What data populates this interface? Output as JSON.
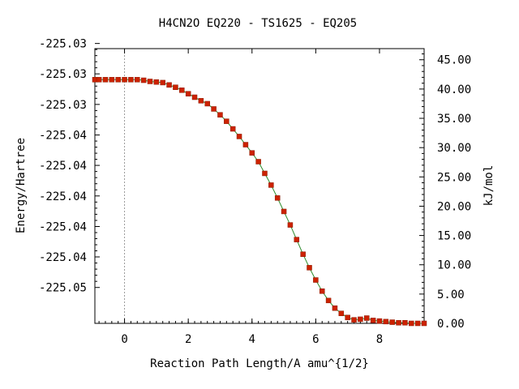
{
  "chart_data": {
    "type": "line",
    "title": "H4CN2O   EQ220 - TS1625 - EQ205",
    "xlabel": "Reaction Path Length/A amu^{1/2}",
    "ylabel": "Energy/Hartree",
    "y2label": "kJ/mol",
    "xlim": [
      -0.93,
      9.4
    ],
    "ylim": [
      -225.0475,
      -225.0315
    ],
    "y2lim": [
      0.0,
      46.9
    ],
    "x_ticks": [
      0,
      2,
      4,
      6,
      8
    ],
    "x_tick_labels": [
      "0",
      "2",
      "4",
      "6",
      "8"
    ],
    "y_ticks": [
      -225.0312,
      -225.03297,
      -225.03475,
      -225.03653,
      -225.0383,
      -225.04008,
      -225.04186,
      -225.04363,
      -225.04541
    ],
    "y_tick_labels": [
      "-225.03",
      "-225.03",
      "-225.03",
      "-225.04",
      "-225.04",
      "-225.04",
      "-225.04",
      "-225.04",
      "-225.05"
    ],
    "y2_ticks": [
      0,
      5,
      10,
      15,
      20,
      25,
      30,
      35,
      40,
      45
    ],
    "y2_tick_labels": [
      "0.00",
      "5.00",
      "10.00",
      "15.00",
      "20.00",
      "25.00",
      "30.00",
      "35.00",
      "40.00",
      "45.00"
    ],
    "ts_marker_x": 0.0,
    "grid": false,
    "series": [
      {
        "color": "#cc2200",
        "line_color": "#2a8a2a",
        "points": [
          [
            -0.93,
            41.6
          ],
          [
            -0.8,
            41.6
          ],
          [
            -0.6,
            41.6
          ],
          [
            -0.4,
            41.6
          ],
          [
            -0.2,
            41.6
          ],
          [
            0.0,
            41.6
          ],
          [
            0.2,
            41.6
          ],
          [
            0.4,
            41.6
          ],
          [
            0.6,
            41.5
          ],
          [
            0.8,
            41.3
          ],
          [
            1.0,
            41.2
          ],
          [
            1.2,
            41.1
          ],
          [
            1.4,
            40.7
          ],
          [
            1.6,
            40.3
          ],
          [
            1.8,
            39.8
          ],
          [
            2.0,
            39.2
          ],
          [
            2.2,
            38.6
          ],
          [
            2.4,
            38.0
          ],
          [
            2.6,
            37.5
          ],
          [
            2.8,
            36.6
          ],
          [
            3.0,
            35.6
          ],
          [
            3.2,
            34.5
          ],
          [
            3.4,
            33.2
          ],
          [
            3.6,
            31.9
          ],
          [
            3.8,
            30.5
          ],
          [
            4.0,
            29.1
          ],
          [
            4.2,
            27.6
          ],
          [
            4.4,
            25.6
          ],
          [
            4.6,
            23.6
          ],
          [
            4.8,
            21.4
          ],
          [
            5.0,
            19.1
          ],
          [
            5.2,
            16.8
          ],
          [
            5.4,
            14.3
          ],
          [
            5.6,
            11.8
          ],
          [
            5.8,
            9.5
          ],
          [
            6.0,
            7.4
          ],
          [
            6.2,
            5.5
          ],
          [
            6.4,
            3.9
          ],
          [
            6.6,
            2.6
          ],
          [
            6.8,
            1.7
          ],
          [
            7.0,
            1.0
          ],
          [
            7.2,
            0.6
          ],
          [
            7.4,
            0.7
          ],
          [
            7.6,
            0.9
          ],
          [
            7.8,
            0.5
          ],
          [
            8.0,
            0.4
          ],
          [
            8.2,
            0.3
          ],
          [
            8.4,
            0.2
          ],
          [
            8.6,
            0.1
          ],
          [
            8.8,
            0.1
          ],
          [
            9.0,
            0.0
          ],
          [
            9.2,
            0.0
          ],
          [
            9.4,
            0.0
          ]
        ]
      }
    ]
  }
}
